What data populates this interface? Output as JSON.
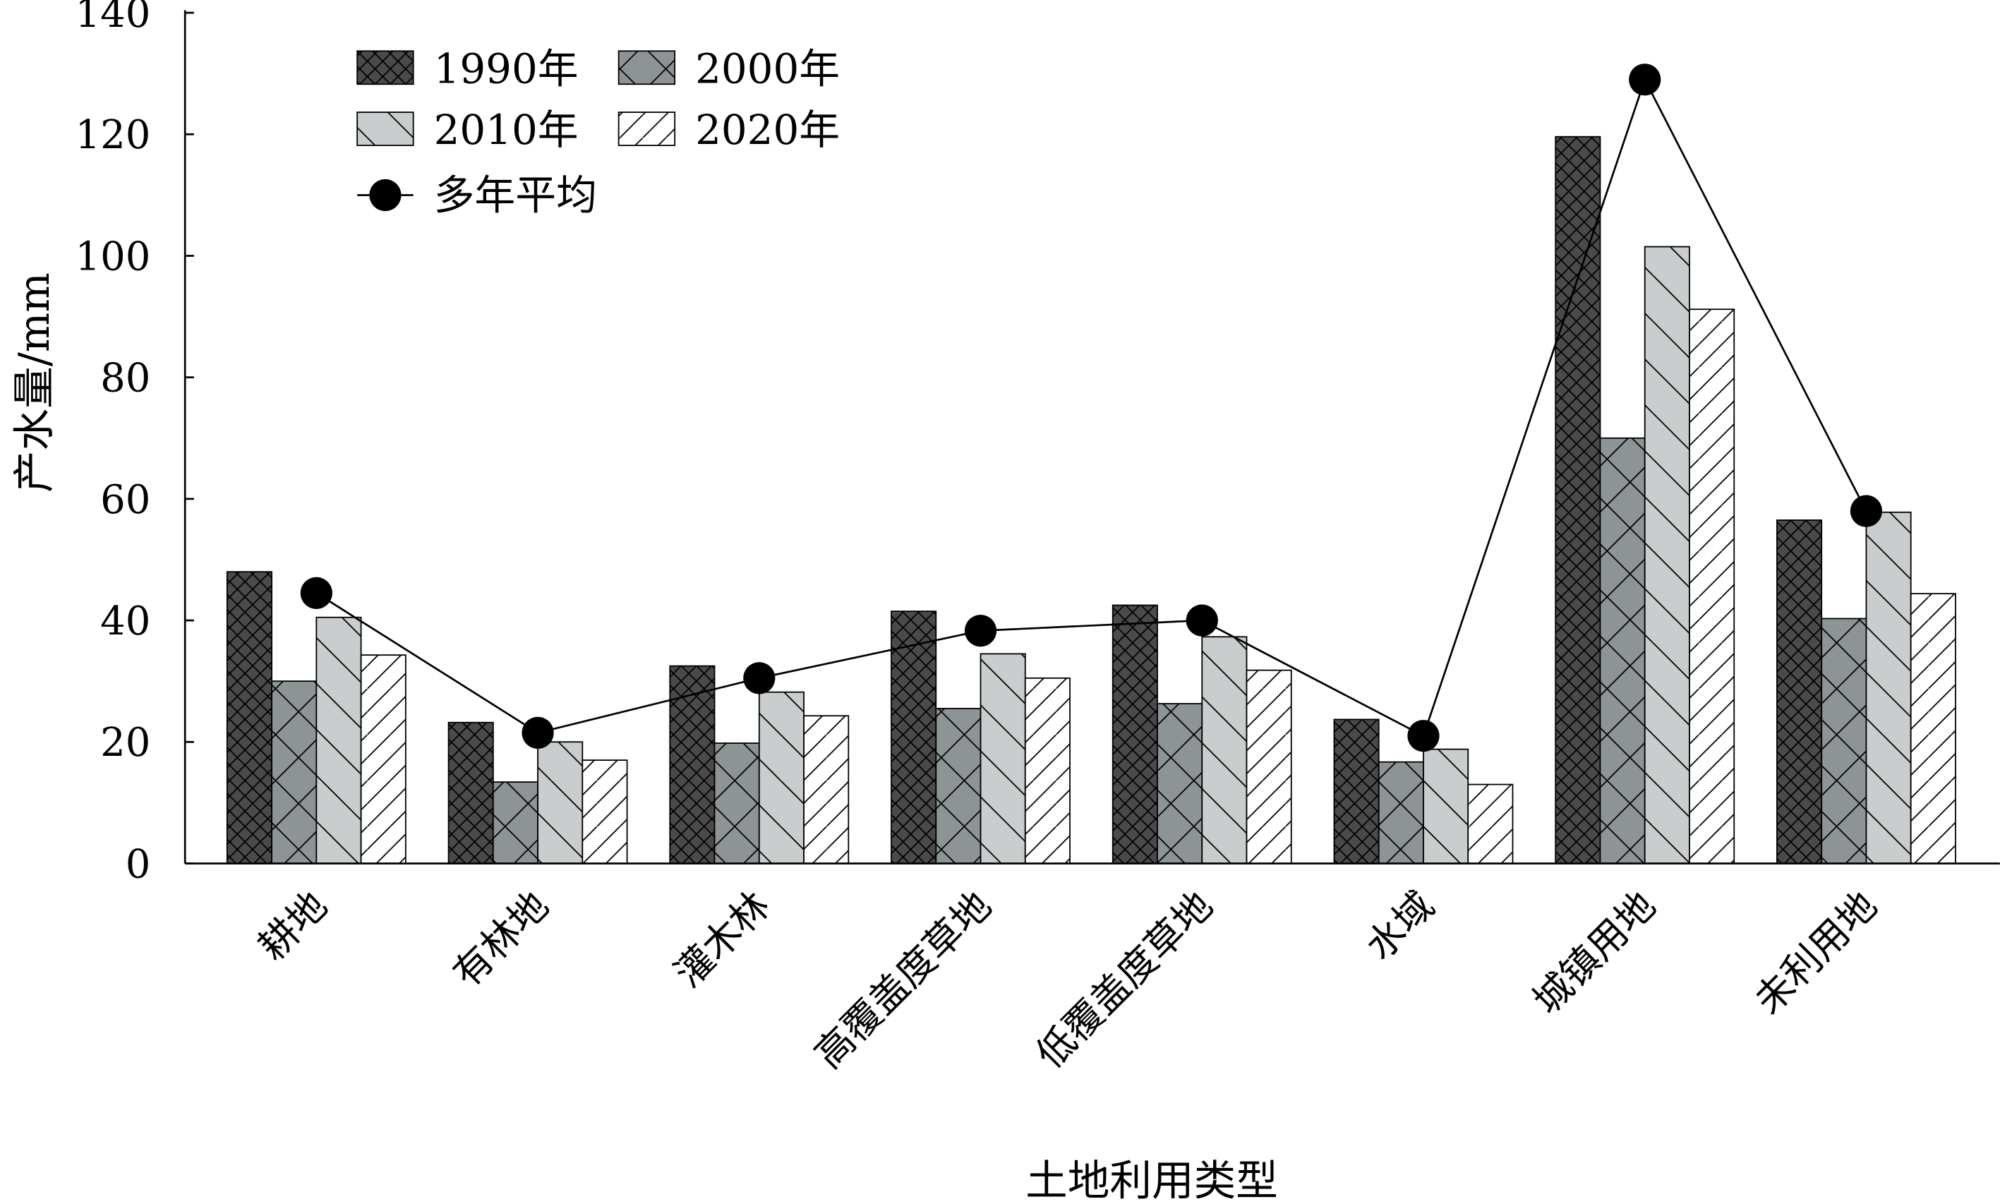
{
  "chart_data": {
    "type": "bar",
    "title": "",
    "xlabel": "土地利用类型",
    "ylabel": "产水量/mm",
    "ylim": [
      0,
      140
    ],
    "yticks": [
      0,
      20,
      40,
      60,
      80,
      100,
      120,
      140
    ],
    "grid": false,
    "legend_position": "top-left",
    "categories": [
      "耕地",
      "有林地",
      "灌木林",
      "高覆盖度草地",
      "低覆盖度草地",
      "水域",
      "城镇用地",
      "未利用地"
    ],
    "series": [
      {
        "name": "1990年",
        "color": "#4a4a4a",
        "pattern": "crosshatch",
        "values": [
          48.0,
          23.2,
          32.5,
          41.5,
          42.5,
          23.7,
          119.6,
          56.5
        ]
      },
      {
        "name": "2000年",
        "color": "#8e9496",
        "pattern": "crosshatch",
        "values": [
          30.0,
          13.4,
          19.8,
          25.5,
          26.3,
          16.7,
          70.0,
          40.3
        ]
      },
      {
        "name": "2010年",
        "color": "#c9cdcd",
        "pattern": "backslash",
        "values": [
          40.5,
          20.0,
          28.2,
          34.5,
          37.3,
          18.8,
          101.5,
          57.8
        ]
      },
      {
        "name": "2020年",
        "color": "#ffffff",
        "pattern": "slash",
        "values": [
          34.3,
          17.0,
          24.3,
          30.5,
          31.8,
          13.0,
          91.2,
          44.4
        ]
      }
    ],
    "line_series": {
      "name": "多年平均",
      "type": "line",
      "marker": "circle",
      "values": [
        44.5,
        21.5,
        30.5,
        38.3,
        40.0,
        21.0,
        129.0,
        58.0
      ]
    }
  }
}
